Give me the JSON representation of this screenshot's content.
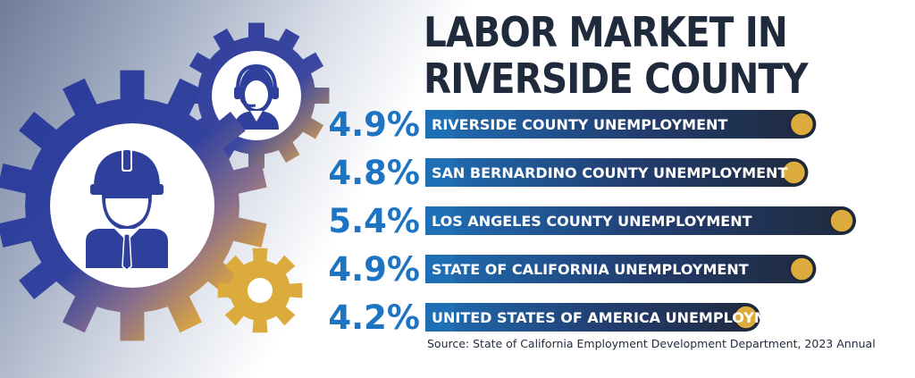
{
  "colors": {
    "gear_blue": "#2f3f9c",
    "gear_gold": "#e2ad3c",
    "title": "#1f2a3c",
    "percent": "#1c74c2",
    "bar_dark": "#1f2a3c",
    "bar_light": "#1f6fb6",
    "knob": "#dbab3d"
  },
  "icons": [
    "gear-icon",
    "call-center-agent-icon",
    "construction-worker-icon",
    "small-gear-icon"
  ],
  "title_lines": [
    "LABOR MARKET IN",
    "RIVERSIDE COUNTY"
  ],
  "source": "Source: State of California Employment Development Department, 2023 Annual",
  "chart_data": {
    "type": "bar",
    "orientation": "horizontal",
    "title": "LABOR MARKET IN RIVERSIDE COUNTY",
    "unit": "%",
    "categories": [
      "RIVERSIDE COUNTY UNEMPLOYMENT",
      "SAN BERNARDINO COUNTY UNEMPLOYMENT",
      "LOS ANGELES COUNTY UNEMPLOYMENT",
      "STATE OF CALIFORNIA UNEMPLOYMENT",
      "UNITED STATES OF AMERICA UNEMPLOYMENT"
    ],
    "values": [
      4.9,
      4.8,
      5.4,
      4.9,
      4.2
    ],
    "value_labels": [
      "4.9%",
      "4.8%",
      "5.4%",
      "4.9%",
      "4.2%"
    ],
    "xlabel": "",
    "ylabel": "",
    "grid": false
  }
}
